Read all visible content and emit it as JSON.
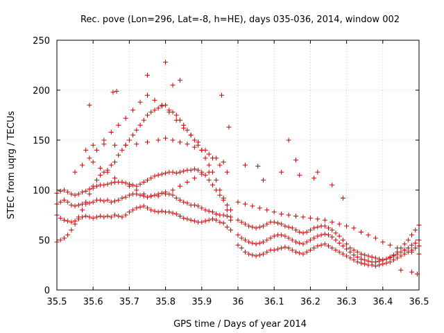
{
  "chart_data": {
    "type": "scatter",
    "title": "Rec. pove (Lon=296, Lat=-8, h=HE), days 035-036, 2014, window 002",
    "xlabel": "GPS time / Days of year 2014",
    "ylabel": "STEC from uqrg / TECUs",
    "xlim": [
      35.5,
      36.5
    ],
    "ylim": [
      0,
      250
    ],
    "xticks": [
      "35.5",
      "35.6",
      "35.7",
      "35.8",
      "35.9",
      "36",
      "36.1",
      "36.2",
      "36.3",
      "36.4",
      "36.5"
    ],
    "yticks": [
      "0",
      "50",
      "100",
      "150",
      "200",
      "250"
    ],
    "grid": true,
    "marker": "+",
    "series": [
      {
        "name": "STEC",
        "color": "#cc0000",
        "x": [
          35.5,
          35.51,
          35.52,
          35.53,
          35.54,
          35.55,
          35.56,
          35.57,
          35.58,
          35.59,
          35.6,
          35.61,
          35.62,
          35.63,
          35.64,
          35.65,
          35.66,
          35.67,
          35.68,
          35.69,
          35.7,
          35.71,
          35.72,
          35.73,
          35.74,
          35.75,
          35.76,
          35.77,
          35.78,
          35.79,
          35.8,
          35.81,
          35.82,
          35.83,
          35.84,
          35.85,
          35.86,
          35.87,
          35.88,
          35.89,
          35.9,
          35.91,
          35.92,
          35.93,
          35.94,
          35.95,
          35.96,
          35.97,
          35.98,
          35.5,
          35.51,
          35.52,
          35.53,
          35.54,
          35.55,
          35.56,
          35.57,
          35.58,
          35.59,
          35.6,
          35.61,
          35.62,
          35.63,
          35.64,
          35.65,
          35.66,
          35.67,
          35.68,
          35.69,
          35.7,
          35.71,
          35.72,
          35.73,
          35.74,
          35.75,
          35.76,
          35.77,
          35.78,
          35.79,
          35.8,
          35.81,
          35.82,
          35.83,
          35.84,
          35.85,
          35.86,
          35.87,
          35.88,
          35.89,
          35.9,
          35.91,
          35.92,
          35.93,
          35.94,
          35.95,
          35.96,
          35.97,
          35.98,
          35.5,
          35.51,
          35.52,
          35.53,
          35.54,
          35.55,
          35.56,
          35.57,
          35.58,
          35.59,
          35.6,
          35.61,
          35.62,
          35.63,
          35.64,
          35.65,
          35.66,
          35.67,
          35.68,
          35.69,
          35.7,
          35.71,
          35.72,
          35.73,
          35.74,
          35.75,
          35.76,
          35.77,
          35.78,
          35.79,
          35.8,
          35.81,
          35.82,
          35.83,
          35.84,
          35.85,
          35.86,
          35.87,
          35.88,
          35.89,
          35.9,
          35.91,
          35.92,
          35.93,
          35.94,
          35.95,
          35.96,
          35.97,
          35.98,
          35.5,
          35.51,
          35.52,
          35.53,
          35.54,
          35.55,
          35.56,
          35.57,
          35.58,
          35.59,
          35.6,
          35.61,
          35.62,
          35.63,
          35.64,
          35.65,
          35.66,
          35.67,
          35.68,
          35.69,
          35.7,
          35.71,
          35.72,
          35.73,
          35.74,
          35.75,
          35.76,
          35.77,
          35.78,
          35.79,
          35.8,
          35.81,
          35.82,
          35.83,
          35.84,
          35.85,
          35.86,
          35.87,
          35.88,
          35.89,
          35.9,
          35.91,
          35.92,
          35.93,
          35.94,
          35.95,
          35.96,
          35.97,
          35.98,
          35.55,
          35.57,
          35.59,
          35.61,
          35.63,
          35.65,
          35.67,
          35.69,
          35.71,
          35.73,
          35.75,
          35.77,
          35.79,
          35.81,
          35.83,
          35.85,
          35.87,
          35.89,
          35.91,
          35.93,
          35.95,
          35.97,
          35.58,
          35.6,
          35.63,
          35.66,
          35.69,
          35.72,
          35.75,
          35.78,
          35.8,
          35.82,
          35.84,
          35.86,
          35.88,
          35.9,
          35.92,
          35.94,
          35.96,
          35.6,
          35.62,
          35.64,
          35.66,
          35.68,
          35.7,
          35.72,
          35.74,
          35.76,
          35.78,
          35.8,
          35.82,
          35.84,
          35.86,
          35.88,
          35.9,
          35.92,
          35.75,
          35.8,
          35.82,
          35.84,
          35.59,
          35.655,
          35.665,
          35.955,
          35.975,
          36.0,
          36.01,
          36.02,
          36.03,
          36.04,
          36.05,
          36.06,
          36.07,
          36.08,
          36.09,
          36.1,
          36.11,
          36.12,
          36.13,
          36.14,
          36.15,
          36.16,
          36.17,
          36.18,
          36.19,
          36.2,
          36.21,
          36.22,
          36.23,
          36.24,
          36.25,
          36.26,
          36.27,
          36.28,
          36.29,
          36.3,
          36.31,
          36.32,
          36.33,
          36.34,
          36.35,
          36.36,
          36.37,
          36.38,
          36.39,
          36.4,
          36.41,
          36.42,
          36.43,
          36.44,
          36.45,
          36.46,
          36.47,
          36.48,
          36.49,
          36.5,
          36.0,
          36.01,
          36.02,
          36.03,
          36.04,
          36.05,
          36.06,
          36.07,
          36.08,
          36.09,
          36.1,
          36.11,
          36.12,
          36.13,
          36.14,
          36.15,
          36.16,
          36.17,
          36.18,
          36.19,
          36.2,
          36.21,
          36.22,
          36.23,
          36.24,
          36.25,
          36.26,
          36.27,
          36.28,
          36.29,
          36.3,
          36.31,
          36.32,
          36.33,
          36.34,
          36.35,
          36.36,
          36.37,
          36.38,
          36.39,
          36.4,
          36.41,
          36.42,
          36.43,
          36.44,
          36.45,
          36.46,
          36.47,
          36.48,
          36.49,
          36.5,
          36.0,
          36.01,
          36.02,
          36.03,
          36.04,
          36.05,
          36.06,
          36.07,
          36.08,
          36.09,
          36.1,
          36.11,
          36.12,
          36.13,
          36.14,
          36.15,
          36.16,
          36.17,
          36.18,
          36.19,
          36.2,
          36.21,
          36.22,
          36.23,
          36.24,
          36.25,
          36.26,
          36.27,
          36.28,
          36.29,
          36.3,
          36.31,
          36.32,
          36.33,
          36.34,
          36.35,
          36.36,
          36.37,
          36.38,
          36.39,
          36.4,
          36.41,
          36.42,
          36.43,
          36.44,
          36.45,
          36.46,
          36.47,
          36.48,
          36.49,
          36.5,
          36.0,
          36.02,
          36.04,
          36.06,
          36.08,
          36.1,
          36.12,
          36.14,
          36.16,
          36.18,
          36.2,
          36.22,
          36.24,
          36.26,
          36.28,
          36.3,
          36.32,
          36.34,
          36.36,
          36.38,
          36.4,
          36.42,
          36.44,
          36.46,
          36.48,
          36.5,
          36.02,
          36.07,
          36.12,
          36.14,
          36.16,
          36.17,
          36.21,
          36.22,
          36.26,
          36.29,
          36.45,
          36.48,
          36.495,
          36.055
        ],
        "y": [
          75,
          72,
          70,
          69,
          68,
          69,
          71,
          73,
          74,
          73,
          72,
          73,
          74,
          73,
          74,
          73,
          75,
          74,
          73,
          75,
          78,
          80,
          82,
          83,
          84,
          82,
          80,
          79,
          78,
          79,
          78,
          78,
          77,
          76,
          74,
          72,
          71,
          70,
          69,
          68,
          68,
          69,
          70,
          71,
          70,
          68,
          67,
          63,
          60,
          86,
          88,
          90,
          88,
          85,
          84,
          85,
          86,
          86,
          87,
          88,
          90,
          90,
          89,
          90,
          88,
          89,
          90,
          92,
          93,
          95,
          96,
          96,
          95,
          94,
          93,
          94,
          95,
          96,
          97,
          98,
          96,
          95,
          92,
          90,
          88,
          87,
          85,
          85,
          84,
          82,
          80,
          79,
          78,
          76,
          75,
          75,
          74,
          73,
          97,
          99,
          100,
          98,
          96,
          95,
          96,
          98,
          99,
          101,
          102,
          104,
          105,
          105,
          106,
          107,
          108,
          108,
          108,
          107,
          106,
          105,
          104,
          106,
          108,
          110,
          112,
          114,
          115,
          116,
          117,
          118,
          118,
          117,
          118,
          119,
          120,
          120,
          121,
          120,
          118,
          115,
          110,
          105,
          100,
          95,
          90,
          85,
          80,
          48,
          50,
          52,
          55,
          60,
          66,
          73,
          80,
          88,
          96,
          104,
          110,
          115,
          118,
          120,
          125,
          128,
          135,
          140,
          145,
          150,
          155,
          160,
          165,
          170,
          175,
          178,
          180,
          182,
          184,
          185,
          180,
          178,
          175,
          170,
          165,
          160,
          155,
          150,
          145,
          140,
          132,
          125,
          118,
          110,
          100,
          92,
          80,
          70,
          118,
          125,
          132,
          140,
          150,
          158,
          165,
          172,
          180,
          188,
          195,
          190,
          185,
          178,
          170,
          162,
          155,
          148,
          140,
          132,
          125,
          118,
          140,
          145,
          146,
          145,
          145,
          146,
          148,
          150,
          152,
          150,
          148,
          146,
          143,
          140,
          136,
          132,
          128,
          128,
          122,
          118,
          112,
          108,
          104,
          100,
          96,
          94,
          94,
          96,
          100,
          104,
          108,
          112,
          116,
          118,
          215,
          228,
          205,
          210,
          185,
          198,
          199,
          195,
          163,
          45,
          42,
          38,
          36,
          35,
          34,
          35,
          36,
          38,
          40,
          40,
          41,
          42,
          43,
          42,
          40,
          38,
          37,
          36,
          38,
          40,
          42,
          44,
          45,
          46,
          44,
          42,
          40,
          38,
          36,
          34,
          32,
          30,
          28,
          27,
          26,
          25,
          25,
          24,
          25,
          26,
          27,
          28,
          30,
          32,
          34,
          36,
          38,
          40,
          42,
          44,
          55,
          52,
          50,
          48,
          47,
          46,
          47,
          48,
          50,
          52,
          54,
          55,
          55,
          54,
          52,
          50,
          48,
          47,
          46,
          48,
          50,
          52,
          54,
          55,
          56,
          55,
          53,
          50,
          47,
          44,
          41,
          38,
          35,
          33,
          31,
          30,
          29,
          28,
          28,
          29,
          30,
          31,
          32,
          34,
          36,
          38,
          40,
          42,
          45,
          47,
          50,
          70,
          68,
          66,
          64,
          63,
          62,
          63,
          64,
          66,
          68,
          68,
          67,
          66,
          64,
          63,
          62,
          60,
          58,
          57,
          58,
          60,
          62,
          63,
          64,
          64,
          62,
          60,
          57,
          54,
          50,
          46,
          42,
          40,
          38,
          36,
          35,
          34,
          33,
          32,
          31,
          30,
          31,
          33,
          35,
          38,
          42,
          46,
          50,
          55,
          60,
          65,
          88,
          86,
          84,
          82,
          80,
          78,
          76,
          75,
          74,
          73,
          72,
          71,
          70,
          68,
          66,
          64,
          62,
          58,
          55,
          52,
          48,
          45,
          42,
          40,
          38,
          36,
          125,
          110,
          118,
          150,
          130,
          115,
          112,
          118,
          105,
          92,
          20,
          18,
          16,
          124
        ]
      }
    ]
  }
}
